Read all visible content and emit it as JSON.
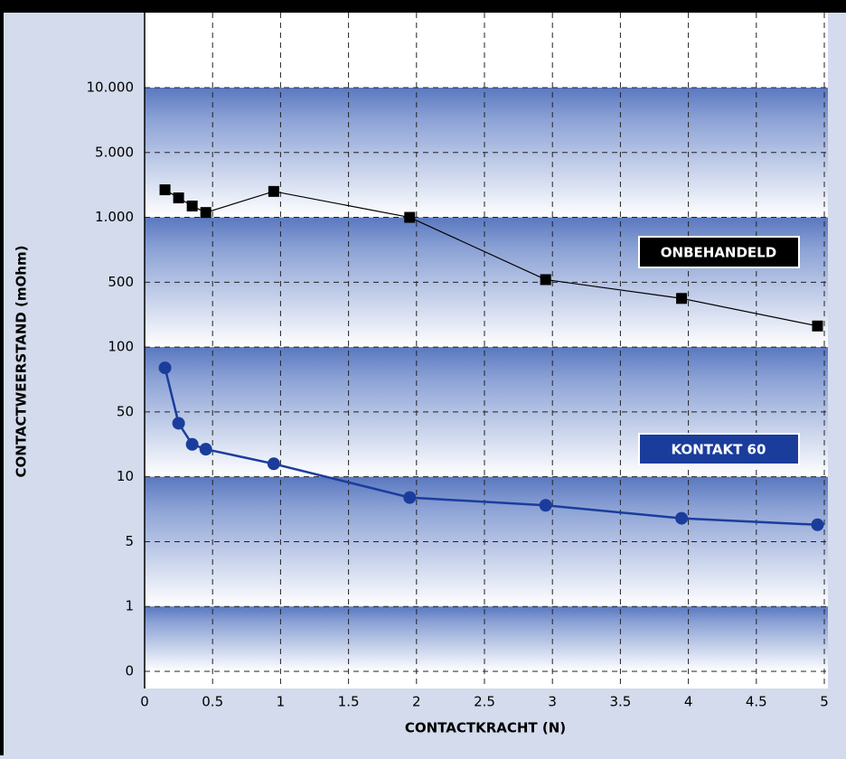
{
  "chart_data": {
    "type": "line",
    "x_label": "CONTACTKRACHT (N)",
    "y_label": "CONTACTWEERSTAND (mOhm)",
    "xlim": [
      0,
      5
    ],
    "xticks": [
      0,
      0.5,
      1,
      1.5,
      2,
      2.5,
      3,
      3.5,
      4,
      4.5,
      5
    ],
    "ylim": [
      0,
      10000
    ],
    "yscale": "piecewise",
    "yticks": [
      0,
      1,
      5,
      10,
      50,
      100,
      500,
      {
        "value": 1000,
        "label": "1.000"
      },
      {
        "value": 5000,
        "label": "5.000"
      },
      {
        "value": 10000,
        "label": "10.000"
      }
    ],
    "grid": true,
    "series": [
      {
        "name": "ONBEHANDELD",
        "color": "#000000",
        "marker": "square",
        "x": [
          0.15,
          0.25,
          0.35,
          0.45,
          0.95,
          1.95,
          2.95,
          3.95,
          4.95
        ],
        "values": [
          2700,
          2200,
          1700,
          1300,
          2600,
          1000,
          520,
          400,
          230
        ]
      },
      {
        "name": "KONTAKT 60",
        "color": "#1a3d9c",
        "marker": "circle",
        "x": [
          0.15,
          0.25,
          0.35,
          0.45,
          0.95,
          1.95,
          2.95,
          3.95,
          4.95
        ],
        "values": [
          84,
          43,
          30,
          27,
          18,
          8.4,
          7.8,
          6.8,
          6.3
        ]
      }
    ]
  }
}
